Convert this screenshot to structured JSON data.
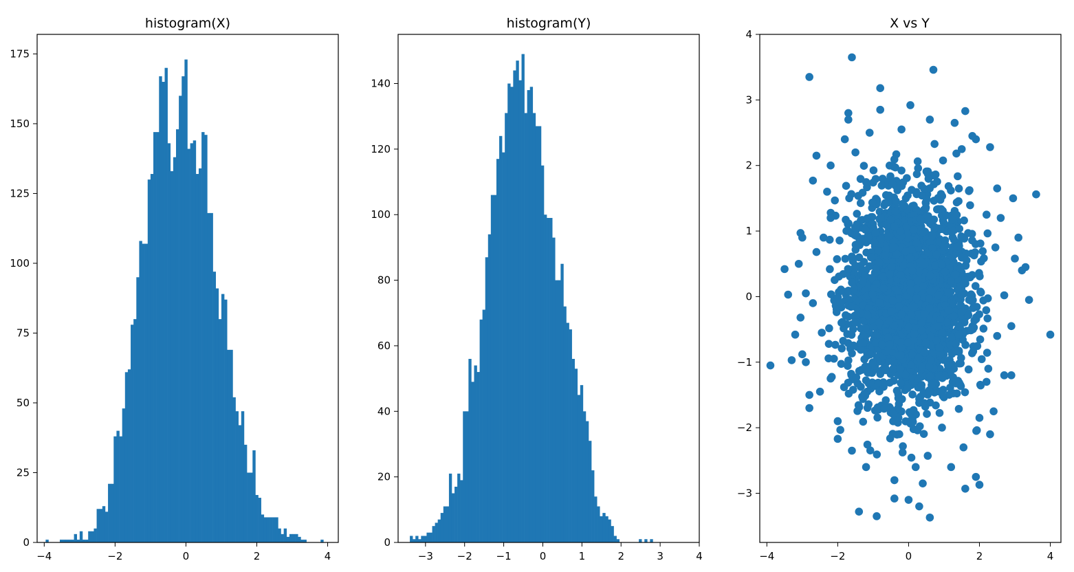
{
  "colors": {
    "bar": "#1f77b4",
    "marker": "#1f77b4",
    "axes": "#000000",
    "background": "#ffffff"
  },
  "chart_data": [
    {
      "type": "bar",
      "title": "histogram(X)",
      "xlabel": "",
      "ylabel": "",
      "xlim": [
        -4.2,
        4.3
      ],
      "ylim": [
        0,
        182
      ],
      "xticks": [
        -4,
        -2,
        0,
        2,
        4
      ],
      "xtick_labels": [
        "−4",
        "−2",
        "0",
        "2",
        "4"
      ],
      "yticks": [
        0,
        25,
        50,
        75,
        100,
        125,
        150,
        175
      ],
      "ytick_labels": [
        "0",
        "25",
        "50",
        "75",
        "100",
        "125",
        "150",
        "175"
      ],
      "grid": false,
      "bins": {
        "start": -3.96,
        "width": 0.08,
        "values": [
          1,
          0,
          0,
          0,
          0,
          1,
          1,
          1,
          1,
          1,
          3,
          1,
          4,
          1,
          1,
          4,
          4,
          5,
          12,
          12,
          13,
          11,
          21,
          21,
          38,
          40,
          38,
          48,
          61,
          62,
          78,
          80,
          95,
          108,
          107,
          107,
          130,
          132,
          147,
          147,
          167,
          165,
          170,
          143,
          133,
          138,
          148,
          160,
          167,
          173,
          141,
          143,
          144,
          132,
          134,
          147,
          146,
          118,
          118,
          97,
          91,
          80,
          89,
          87,
          69,
          69,
          52,
          47,
          42,
          47,
          35,
          25,
          25,
          33,
          17,
          16,
          10,
          9,
          9,
          9,
          9,
          9,
          5,
          3,
          5,
          2,
          3,
          3,
          3,
          2,
          1,
          1,
          0,
          0,
          0,
          0,
          0,
          1
        ]
      }
    },
    {
      "type": "bar",
      "title": "histogram(Y)",
      "xlabel": "",
      "ylabel": "",
      "xlim": [
        -3.7,
        4.0
      ],
      "ylim": [
        0,
        155
      ],
      "xticks": [
        -3,
        -2,
        -1,
        0,
        1,
        2,
        3,
        4
      ],
      "xtick_labels": [
        "−3",
        "−2",
        "−1",
        "0",
        "1",
        "2",
        "3",
        "4"
      ],
      "yticks": [
        0,
        20,
        40,
        60,
        80,
        100,
        120,
        140
      ],
      "ytick_labels": [
        "0",
        "20",
        "40",
        "60",
        "80",
        "100",
        "120",
        "140"
      ],
      "grid": false,
      "bins": {
        "start": -3.4,
        "width": 0.0714,
        "values": [
          2,
          1,
          2,
          1,
          2,
          2,
          3,
          3,
          5,
          6,
          7,
          9,
          11,
          11,
          21,
          15,
          17,
          21,
          19,
          40,
          40,
          56,
          49,
          54,
          52,
          68,
          71,
          87,
          94,
          106,
          106,
          117,
          124,
          119,
          131,
          140,
          139,
          144,
          147,
          141,
          149,
          131,
          138,
          139,
          131,
          127,
          127,
          115,
          100,
          99,
          99,
          93,
          80,
          80,
          85,
          72,
          67,
          65,
          56,
          53,
          45,
          48,
          40,
          37,
          31,
          22,
          14,
          11,
          8,
          9,
          8,
          7,
          5,
          2,
          1,
          0,
          0,
          0,
          0,
          0,
          0,
          0,
          1,
          0,
          1,
          0,
          1
        ]
      }
    },
    {
      "type": "scatter",
      "title": "X vs Y",
      "xlabel": "",
      "ylabel": "",
      "xlim": [
        -4.2,
        4.3
      ],
      "ylim": [
        -3.75,
        4.0
      ],
      "xticks": [
        -4,
        -2,
        0,
        2,
        4
      ],
      "xtick_labels": [
        "−4",
        "−2",
        "0",
        "2",
        "4"
      ],
      "yticks": [
        -3,
        -2,
        -1,
        0,
        1,
        2,
        3,
        4
      ],
      "ytick_labels": [
        "−3",
        "−2",
        "−1",
        "0",
        "1",
        "2",
        "3",
        "4"
      ],
      "grid": false,
      "points": [
        [
          -3.9,
          -1.05
        ],
        [
          -3.5,
          0.42
        ],
        [
          -3.4,
          0.03
        ],
        [
          -3.3,
          -0.97
        ],
        [
          -3.2,
          -0.58
        ],
        [
          -3.1,
          0.5
        ],
        [
          -3.05,
          0.97
        ],
        [
          -3.05,
          -0.32
        ],
        [
          -3.0,
          -0.88
        ],
        [
          -2.8,
          -1.7
        ],
        [
          -2.8,
          -1.5
        ],
        [
          -2.8,
          3.35
        ],
        [
          -2.7,
          1.77
        ],
        [
          -2.6,
          2.15
        ],
        [
          -2.0,
          -2.17
        ],
        [
          -1.6,
          3.65
        ],
        [
          -1.7,
          2.8
        ],
        [
          -1.7,
          2.7
        ],
        [
          -0.8,
          3.18
        ],
        [
          -1.4,
          -3.28
        ],
        [
          -0.9,
          -3.35
        ],
        [
          -0.4,
          -3.08
        ],
        [
          0.05,
          2.92
        ],
        [
          0.7,
          3.46
        ],
        [
          1.6,
          2.83
        ],
        [
          1.9,
          2.4
        ],
        [
          2.3,
          2.28
        ],
        [
          2.5,
          1.65
        ],
        [
          2.95,
          1.5
        ],
        [
          3.6,
          1.56
        ],
        [
          3.2,
          0.4
        ],
        [
          3.0,
          0.58
        ],
        [
          3.4,
          -0.05
        ],
        [
          4.0,
          -0.58
        ],
        [
          2.9,
          -0.45
        ],
        [
          2.9,
          -1.2
        ],
        [
          2.2,
          -1.3
        ],
        [
          2.4,
          -1.75
        ],
        [
          2.0,
          -2.87
        ],
        [
          1.9,
          -2.75
        ],
        [
          1.6,
          -2.93
        ],
        [
          0.6,
          -3.37
        ],
        [
          0.3,
          -3.2
        ],
        [
          0.0,
          -3.1
        ],
        [
          -2.9,
          0.05
        ],
        [
          -2.5,
          -1.45
        ],
        [
          -2.6,
          0.68
        ],
        [
          2.7,
          -1.2
        ],
        [
          -2.2,
          2.0
        ],
        [
          2.6,
          1.2
        ],
        [
          3.1,
          0.9
        ],
        [
          -3.0,
          0.9
        ],
        [
          3.3,
          0.45
        ],
        [
          -2.9,
          -1.0
        ],
        [
          2.3,
          -2.1
        ],
        [
          -2.3,
          1.6
        ],
        [
          2.7,
          0.02
        ],
        [
          -2.7,
          -0.1
        ],
        [
          -1.8,
          2.4
        ],
        [
          1.8,
          2.45
        ],
        [
          -0.8,
          2.85
        ],
        [
          0.6,
          2.7
        ],
        [
          -1.1,
          2.5
        ],
        [
          1.3,
          2.65
        ],
        [
          -0.4,
          -2.8
        ],
        [
          0.4,
          -2.85
        ],
        [
          -1.2,
          -2.6
        ],
        [
          1.2,
          -2.6
        ],
        [
          -2.0,
          -1.9
        ],
        [
          2.0,
          -1.85
        ],
        [
          -2.4,
          0.9
        ],
        [
          2.45,
          0.75
        ],
        [
          -2.45,
          -0.55
        ],
        [
          2.5,
          -0.6
        ],
        [
          -1.5,
          2.2
        ],
        [
          1.5,
          2.25
        ],
        [
          -1.6,
          -2.35
        ],
        [
          1.55,
          -2.3
        ],
        [
          -0.2,
          2.55
        ],
        [
          0.2,
          -2.6
        ],
        [
          -2.2,
          1.2
        ],
        [
          2.2,
          1.25
        ],
        [
          -2.2,
          -1.25
        ],
        [
          2.25,
          -1.1
        ]
      ],
      "dense_cluster": {
        "x_std": 0.85,
        "y_std": 0.8,
        "count": 2600
      }
    }
  ]
}
